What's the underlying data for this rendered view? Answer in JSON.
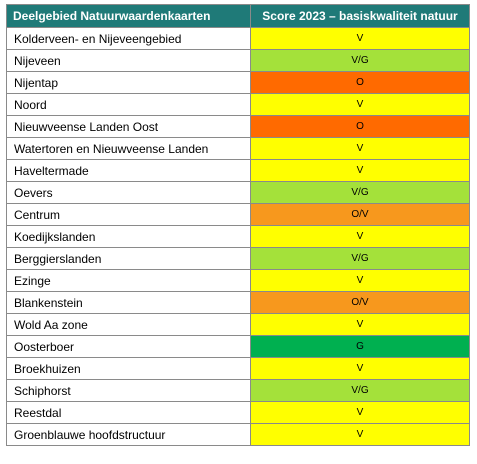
{
  "colors": {
    "header_bg": "#1f7a78",
    "V": "#ffff00",
    "V/G": "#a4e13a",
    "O": "#ff6a00",
    "O/V": "#f7981d",
    "G": "#00b050"
  },
  "header": {
    "area": "Deelgebied Natuurwaardenkaarten",
    "score": "Score 2023 – basiskwaliteit natuur"
  },
  "rows": [
    {
      "area": "Kolderveen- en Nijeveengebied",
      "score": "V"
    },
    {
      "area": "Nijeveen",
      "score": "V/G"
    },
    {
      "area": "Nijentap",
      "score": "O"
    },
    {
      "area": "Noord",
      "score": "V"
    },
    {
      "area": "Nieuwveense Landen Oost",
      "score": "O"
    },
    {
      "area": "Watertoren en Nieuwveense Landen",
      "score": "V"
    },
    {
      "area": "Haveltermade",
      "score": "V"
    },
    {
      "area": "Oevers",
      "score": "V/G"
    },
    {
      "area": "Centrum",
      "score": "O/V"
    },
    {
      "area": "Koedijkslanden",
      "score": "V"
    },
    {
      "area": "Berggierslanden",
      "score": "V/G"
    },
    {
      "area": "Ezinge",
      "score": "V"
    },
    {
      "area": "Blankenstein",
      "score": "O/V"
    },
    {
      "area": "Wold Aa zone",
      "score": "V"
    },
    {
      "area": "Oosterboer",
      "score": "G"
    },
    {
      "area": "Broekhuizen",
      "score": "V"
    },
    {
      "area": "Schiphorst",
      "score": "V/G"
    },
    {
      "area": "Reestdal",
      "score": "V"
    },
    {
      "area": "Groenblauwe hoofdstructuur",
      "score": "V"
    }
  ]
}
